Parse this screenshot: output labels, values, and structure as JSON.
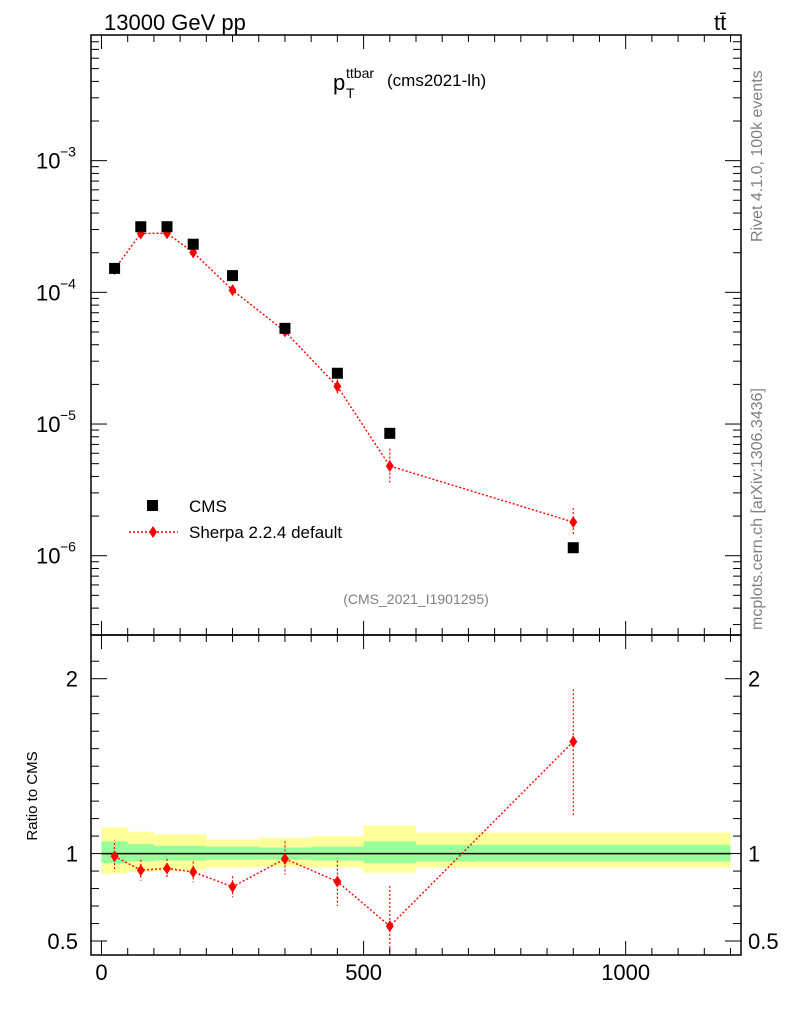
{
  "header": {
    "left": "13000 GeV pp",
    "right": "tt̄"
  },
  "title": {
    "main": "p",
    "sup": "ttbar",
    "sub": "T",
    "suffix": "(cms2021-lh)"
  },
  "side_labels": {
    "rivet": "Rivet 4.1.0,  100k events",
    "mcplots": "mcplots.cern.ch [arXiv:1306.3436]"
  },
  "analysis_id": "(CMS_2021_I1901295)",
  "legend": {
    "data": "CMS",
    "mc": "Sherpa 2.2.4 default"
  },
  "colors": {
    "mc": "#ff0000",
    "data": "#000000",
    "band_inner": "#99ff99",
    "band_outer": "#ffff99"
  },
  "chart_data": [
    {
      "type": "scatter",
      "scale": "log",
      "xlim": [
        -20,
        1220
      ],
      "ylim": [
        2.5e-07,
        0.009
      ],
      "yticks": [
        {
          "value": 0.001,
          "base": "10",
          "exp": "−3"
        },
        {
          "value": 0.0001,
          "base": "10",
          "exp": "−4"
        },
        {
          "value": 1e-05,
          "base": "10",
          "exp": "−5"
        },
        {
          "value": 1e-06,
          "base": "10",
          "exp": "−6"
        }
      ],
      "series": [
        {
          "name": "CMS",
          "x": [
            25,
            75,
            125,
            175,
            250,
            350,
            450,
            550,
            900
          ],
          "y": [
            0.000152,
            0.000315,
            0.000315,
            0.000232,
            0.000134,
            5.33e-05,
            2.43e-05,
            8.5e-06,
            1.15e-06
          ]
        },
        {
          "name": "Sherpa 2.2.4 default",
          "x": [
            25,
            75,
            125,
            175,
            250,
            350,
            450,
            550,
            900
          ],
          "y": [
            0.00015,
            0.00028,
            0.000281,
            0.000201,
            0.000104,
            5.05e-05,
            1.93e-05,
            4.8e-06,
            1.8e-06
          ],
          "err_lo": [
            1.2e-05,
            2.2e-05,
            2.2e-05,
            1.5e-05,
            8e-06,
            4e-06,
            2.5e-06,
            1.3e-06,
            3.5e-07
          ],
          "err_hi": [
            1.2e-05,
            2.2e-05,
            2.2e-05,
            1.5e-05,
            8e-06,
            4e-06,
            2.5e-06,
            1.7e-06,
            5e-07
          ]
        }
      ]
    },
    {
      "type": "scatter",
      "ylabel": "Ratio to CMS",
      "xlim": [
        -20,
        1220
      ],
      "ylim": [
        0.42,
        2.25
      ],
      "yticks": [
        0.5,
        1,
        2
      ],
      "ytick_labels": [
        "0.5",
        "1",
        "2"
      ],
      "xticks": [
        0,
        500,
        1000
      ],
      "xtick_labels": [
        "0",
        "500",
        "1000"
      ],
      "bins": [
        0,
        50,
        100,
        150,
        200,
        300,
        400,
        500,
        600,
        1200
      ],
      "band_inner_lo": [
        0.945,
        0.955,
        0.96,
        0.96,
        0.965,
        0.965,
        0.96,
        0.945,
        0.955
      ],
      "band_inner_hi": [
        1.07,
        1.055,
        1.045,
        1.045,
        1.04,
        1.035,
        1.04,
        1.07,
        1.05
      ],
      "band_outer_lo": [
        0.885,
        0.895,
        0.9,
        0.905,
        0.92,
        0.925,
        0.92,
        0.89,
        0.92
      ],
      "band_outer_hi": [
        1.15,
        1.125,
        1.11,
        1.11,
        1.08,
        1.09,
        1.1,
        1.16,
        1.12
      ],
      "series": [
        {
          "name": "Sherpa 2.2.4 default / CMS",
          "x": [
            25,
            75,
            125,
            175,
            250,
            350,
            450,
            550,
            900
          ],
          "y": [
            0.985,
            0.905,
            0.915,
            0.895,
            0.81,
            0.97,
            0.84,
            0.585,
            1.64
          ],
          "err_lo": [
            0.075,
            0.06,
            0.055,
            0.06,
            0.06,
            0.09,
            0.14,
            0.25,
            0.43
          ],
          "err_hi": [
            0.075,
            0.06,
            0.055,
            0.06,
            0.06,
            0.1,
            0.12,
            0.23,
            0.3
          ]
        }
      ]
    }
  ]
}
